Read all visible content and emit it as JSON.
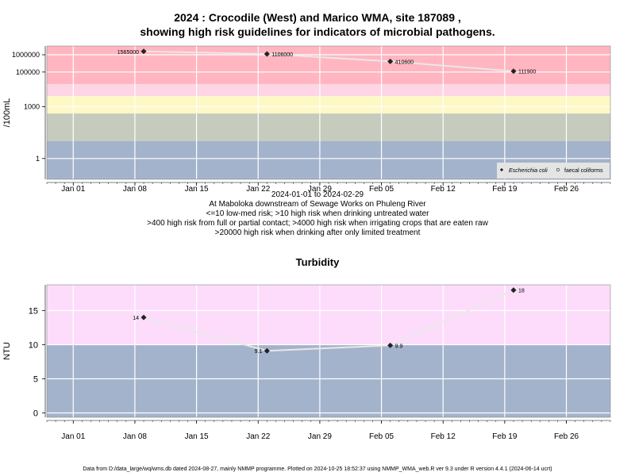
{
  "title_line1": "2024 : Crocodile (West) and Marico WMA, site 187089 ,",
  "title_line2": "showing high risk guidelines for indicators of microbial pathogens.",
  "subtitle_lines": [
    "2024-01-01 to 2024-02-29",
    "At Maboloka downstream of Sewage Works on Phuleng River",
    "<=10 low-med risk; >10 high risk when drinking untreated water",
    ">400 high risk from full or partial contact; >4000 high risk when irrigating crops that are eaten raw",
    ">20000 high risk when drinking after only limited treatment"
  ],
  "footer": "Data from D:/data_large/wq/wms.db dated 2024-08-27, mainly NMMP programme. Plotted on 2024-10-25 18:52:37 using NMMP_WMA_web.R ver 9.3 under R version 4.4.1 (2024-06-14 ucrt)",
  "x_ticks": [
    "Jan 01",
    "Jan 08",
    "Jan 15",
    "Jan 22",
    "Jan 29",
    "Feb 05",
    "Feb 12",
    "Feb 19",
    "Feb 26"
  ],
  "chart_data": [
    {
      "type": "line",
      "title": "",
      "ylabel": "/100mL",
      "yscale": "log",
      "y_ticks": [
        "1",
        "1000",
        "100000",
        "1000000"
      ],
      "x_range": [
        "2023-12-29",
        "2024-03-02"
      ],
      "legend": {
        "position": "bottom-right",
        "entries": [
          "Escherichia coli",
          "faecal coliforms"
        ]
      },
      "risk_bands_colors": {
        "high": "#ffb6c1",
        "contact": "#fdd5e5",
        "irrigation": "#fef8c5",
        "drinking": "#c5ccbe",
        "low": "#a3b3cb"
      },
      "series": [
        {
          "name": "Escherichia coli",
          "x": [
            "2024-01-09",
            "2024-01-23",
            "2024-02-06",
            "2024-02-20"
          ],
          "values": [
            1565000,
            1106000,
            410600,
            111900
          ],
          "labels": [
            "1565000",
            "1106000",
            "410600",
            "111900"
          ]
        }
      ]
    },
    {
      "type": "line",
      "title": "Turbidity",
      "ylabel": "NTU",
      "y_ticks": [
        "0",
        "5",
        "10",
        "15"
      ],
      "x_range": [
        "2023-12-29",
        "2024-03-02"
      ],
      "risk_bands_colors": {
        "high": "#fddcfb",
        "low": "#a3b3cb"
      },
      "series": [
        {
          "name": "",
          "x": [
            "2024-01-09",
            "2024-01-23",
            "2024-02-06",
            "2024-02-20"
          ],
          "values": [
            14,
            9.1,
            9.9,
            18
          ],
          "labels": [
            "14",
            "9.1",
            "9.9",
            "18"
          ]
        }
      ]
    }
  ]
}
